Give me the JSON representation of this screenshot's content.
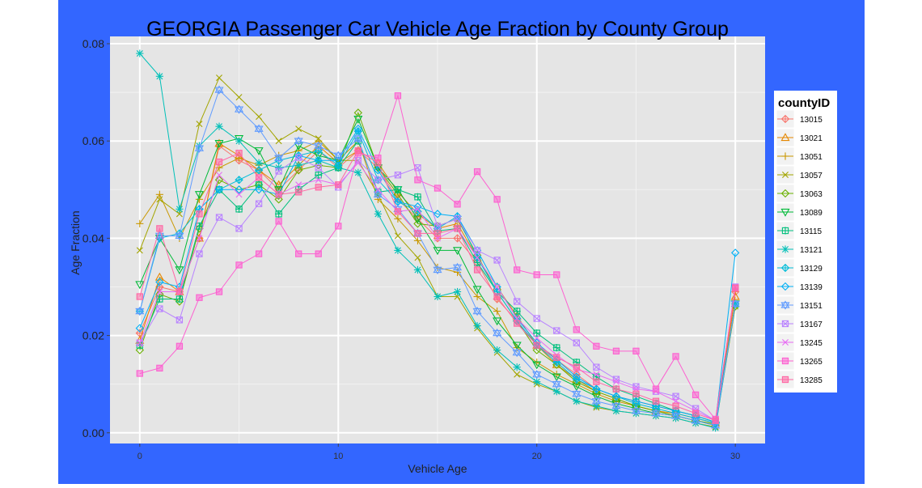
{
  "colors": {
    "frame_background": "#3366FF",
    "panel_background": "#E5E5E5",
    "gridline": "#FFFFFF",
    "legend_background": "#FFFFFF"
  },
  "chart_data": {
    "type": "line",
    "title": "GEORGIA Passenger Car Vehicle Age Fraction by County Group",
    "xlabel": "Vehicle Age",
    "ylabel": "Age Fraction",
    "xlim": [
      -1.5,
      31.5
    ],
    "ylim": [
      -0.0022,
      0.0815
    ],
    "x_ticks": [
      0,
      10,
      20,
      30
    ],
    "x_tick_labels": [
      "0",
      "10",
      "20",
      "30"
    ],
    "y_ticks": [
      0.0,
      0.02,
      0.04,
      0.06,
      0.08
    ],
    "y_tick_labels": [
      "0.00",
      "0.02",
      "0.04",
      "0.06",
      "0.08"
    ],
    "grid": true,
    "legend_position": "right",
    "legend_title": "countyID",
    "x": [
      0,
      1,
      2,
      3,
      4,
      5,
      6,
      7,
      8,
      9,
      10,
      11,
      12,
      13,
      14,
      15,
      16,
      17,
      18,
      19,
      20,
      21,
      22,
      23,
      24,
      25,
      26,
      27,
      28,
      29,
      30
    ],
    "series": [
      {
        "name": "13015",
        "color": "#F8766D",
        "marker": "diamond-plus",
        "values": [
          0.0205,
          0.03,
          0.029,
          0.04,
          0.059,
          0.056,
          0.054,
          0.05,
          0.054,
          0.058,
          0.0545,
          0.058,
          0.0545,
          0.048,
          0.044,
          0.04,
          0.04,
          0.035,
          0.0275,
          0.023,
          0.018,
          0.015,
          0.012,
          0.009,
          0.0075,
          0.0065,
          0.0055,
          0.0045,
          0.0035,
          0.0022,
          0.029
        ]
      },
      {
        "name": "13021",
        "color": "#E58700",
        "marker": "triangle",
        "values": [
          0.019,
          0.032,
          0.029,
          0.04,
          0.0595,
          0.057,
          0.054,
          0.051,
          0.055,
          0.059,
          0.0555,
          0.058,
          0.0555,
          0.0495,
          0.045,
          0.042,
          0.043,
          0.036,
          0.03,
          0.024,
          0.018,
          0.014,
          0.011,
          0.0085,
          0.007,
          0.0055,
          0.0045,
          0.004,
          0.003,
          0.002,
          0.028
        ]
      },
      {
        "name": "13051",
        "color": "#C99800",
        "marker": "plus",
        "values": [
          0.043,
          0.049,
          0.04,
          0.048,
          0.0545,
          0.0565,
          0.055,
          0.057,
          0.058,
          0.06,
          0.056,
          0.06,
          0.048,
          0.044,
          0.0395,
          0.034,
          0.033,
          0.028,
          0.025,
          0.0175,
          0.0145,
          0.012,
          0.01,
          0.008,
          0.0065,
          0.0055,
          0.0045,
          0.0035,
          0.0025,
          0.0018,
          0.0265
        ]
      },
      {
        "name": "13057",
        "color": "#A3A500",
        "marker": "x",
        "values": [
          0.0375,
          0.048,
          0.045,
          0.0635,
          0.073,
          0.069,
          0.065,
          0.06,
          0.0625,
          0.0605,
          0.056,
          0.056,
          0.049,
          0.0405,
          0.036,
          0.028,
          0.028,
          0.0215,
          0.0165,
          0.012,
          0.01,
          0.0085,
          0.0065,
          0.0052,
          0.0045,
          0.004,
          0.0035,
          0.003,
          0.002,
          0.0012,
          0.026
        ]
      },
      {
        "name": "13063",
        "color": "#6BB100",
        "marker": "diamond",
        "values": [
          0.017,
          0.0285,
          0.027,
          0.042,
          0.052,
          0.05,
          0.051,
          0.048,
          0.054,
          0.055,
          0.0545,
          0.0658,
          0.0545,
          0.049,
          0.043,
          0.0425,
          0.044,
          0.0365,
          0.029,
          0.023,
          0.017,
          0.014,
          0.0105,
          0.0085,
          0.007,
          0.0055,
          0.0045,
          0.0035,
          0.0025,
          0.0018,
          0.026
        ]
      },
      {
        "name": "13089",
        "color": "#00BA38",
        "marker": "triangle-down",
        "values": [
          0.0305,
          0.04,
          0.0335,
          0.049,
          0.0595,
          0.0605,
          0.058,
          0.05,
          0.059,
          0.057,
          0.056,
          0.0645,
          0.0545,
          0.05,
          0.044,
          0.0375,
          0.0375,
          0.0295,
          0.023,
          0.018,
          0.014,
          0.0115,
          0.0095,
          0.0075,
          0.006,
          0.005,
          0.004,
          0.0035,
          0.0025,
          0.0015,
          0.0265
        ]
      },
      {
        "name": "13115",
        "color": "#00BF7D",
        "marker": "square-plus",
        "values": [
          0.018,
          0.0275,
          0.0275,
          0.0425,
          0.05,
          0.046,
          0.051,
          0.045,
          0.05,
          0.053,
          0.0545,
          0.06,
          0.0495,
          0.05,
          0.0485,
          0.0415,
          0.042,
          0.035,
          0.029,
          0.025,
          0.0205,
          0.0175,
          0.0145,
          0.0115,
          0.009,
          0.0075,
          0.006,
          0.0045,
          0.0035,
          0.0022,
          0.0265
        ]
      },
      {
        "name": "13121",
        "color": "#00C0B8",
        "marker": "asterisk",
        "values": [
          0.078,
          0.0733,
          0.046,
          0.059,
          0.063,
          0.06,
          0.0555,
          0.0545,
          0.055,
          0.056,
          0.0545,
          0.0535,
          0.045,
          0.0375,
          0.0335,
          0.028,
          0.029,
          0.022,
          0.017,
          0.0135,
          0.0105,
          0.0085,
          0.0065,
          0.0055,
          0.0045,
          0.004,
          0.0035,
          0.003,
          0.002,
          0.001,
          0.0265
        ]
      },
      {
        "name": "13129",
        "color": "#00BCD8",
        "marker": "diamond-plus",
        "values": [
          0.025,
          0.04,
          0.041,
          0.046,
          0.05,
          0.052,
          0.054,
          0.056,
          0.057,
          0.058,
          0.055,
          0.062,
          0.052,
          0.0475,
          0.0455,
          0.042,
          0.0445,
          0.036,
          0.029,
          0.023,
          0.018,
          0.0145,
          0.011,
          0.009,
          0.0075,
          0.006,
          0.005,
          0.004,
          0.003,
          0.002,
          0.0265
        ]
      },
      {
        "name": "13139",
        "color": "#00B0F6",
        "marker": "diamond",
        "values": [
          0.0215,
          0.031,
          0.03,
          0.046,
          0.05,
          0.05,
          0.05,
          0.049,
          0.057,
          0.056,
          0.056,
          0.0625,
          0.054,
          0.0475,
          0.0465,
          0.045,
          0.0445,
          0.0375,
          0.03,
          0.0235,
          0.0185,
          0.015,
          0.0115,
          0.009,
          0.0075,
          0.0065,
          0.0055,
          0.0045,
          0.0035,
          0.0022,
          0.037
        ]
      },
      {
        "name": "13151",
        "color": "#619CFF",
        "marker": "star",
        "values": [
          0.025,
          0.0405,
          0.0405,
          0.0585,
          0.0705,
          0.0665,
          0.0625,
          0.0565,
          0.06,
          0.059,
          0.057,
          0.0605,
          0.049,
          0.046,
          0.041,
          0.0335,
          0.034,
          0.025,
          0.0205,
          0.0165,
          0.012,
          0.01,
          0.008,
          0.0065,
          0.0055,
          0.0045,
          0.004,
          0.0035,
          0.0025,
          0.0015,
          0.0265
        ]
      },
      {
        "name": "13167",
        "color": "#B983FF",
        "marker": "square-x",
        "values": [
          0.0185,
          0.0255,
          0.0232,
          0.0368,
          0.0443,
          0.042,
          0.0471,
          0.0538,
          0.0566,
          0.0545,
          0.0505,
          0.056,
          0.052,
          0.053,
          0.0545,
          0.0425,
          0.044,
          0.0375,
          0.0355,
          0.027,
          0.0235,
          0.021,
          0.0185,
          0.0135,
          0.011,
          0.0095,
          0.0085,
          0.0075,
          0.005,
          0.0025,
          0.03
        ]
      },
      {
        "name": "13245",
        "color": "#E76BF3",
        "marker": "x",
        "values": [
          0.0185,
          0.029,
          0.029,
          0.04,
          0.053,
          0.049,
          0.0525,
          0.049,
          0.051,
          0.052,
          0.051,
          0.0555,
          0.05,
          0.0455,
          0.046,
          0.04,
          0.042,
          0.036,
          0.03,
          0.0235,
          0.0195,
          0.016,
          0.013,
          0.012,
          0.0105,
          0.009,
          0.0085,
          0.0065,
          0.0045,
          0.0025,
          0.03
        ]
      },
      {
        "name": "13265",
        "color": "#FD61D1",
        "marker": "square",
        "values": [
          0.0122,
          0.0133,
          0.0178,
          0.0278,
          0.029,
          0.0345,
          0.0368,
          0.0435,
          0.0368,
          0.0368,
          0.0425,
          0.0575,
          0.0565,
          0.0693,
          0.052,
          0.0503,
          0.047,
          0.0537,
          0.048,
          0.0335,
          0.0325,
          0.0325,
          0.0212,
          0.0178,
          0.0168,
          0.0168,
          0.009,
          0.0157,
          0.0078,
          0.0028,
          0.0298
        ]
      },
      {
        "name": "13285",
        "color": "#FF67A4",
        "marker": "square",
        "values": [
          0.028,
          0.042,
          0.029,
          0.045,
          0.0557,
          0.0575,
          0.0525,
          0.049,
          0.0495,
          0.0505,
          0.051,
          0.058,
          0.0555,
          0.0455,
          0.041,
          0.041,
          0.042,
          0.0335,
          0.028,
          0.0225,
          0.018,
          0.0155,
          0.0135,
          0.0105,
          0.009,
          0.008,
          0.0065,
          0.0055,
          0.004,
          0.0025,
          0.0298
        ]
      }
    ]
  }
}
